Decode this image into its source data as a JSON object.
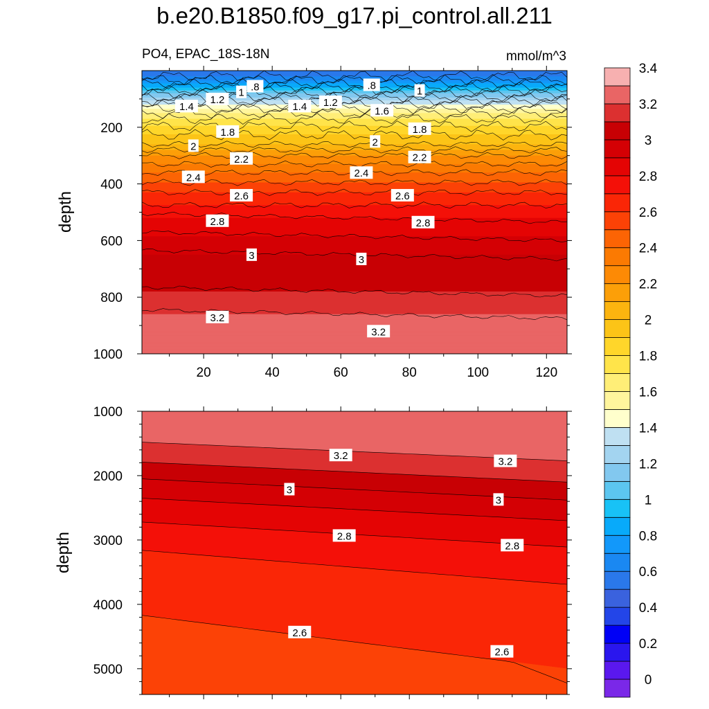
{
  "title": "b.e20.B1850.f09_g17.pi_control.all.211",
  "chart_data": [
    {
      "type": "contour",
      "panel": "upper",
      "left_label": "PO4, EPAC_18S-18N",
      "units": "mmol/m^3",
      "ylabel": "depth",
      "xlabel": "",
      "xlim": [
        2,
        126
      ],
      "ylim": [
        1000,
        0
      ],
      "x_ticks": [
        20,
        40,
        60,
        80,
        100,
        120
      ],
      "y_ticks": [
        200,
        400,
        600,
        800,
        1000
      ],
      "contour_profile": [
        {
          "depth": 5,
          "value": 0.5
        },
        {
          "depth": 40,
          "value": 0.75
        },
        {
          "depth": 100,
          "value": 1.25
        },
        {
          "depth": 140,
          "value": 1.55
        },
        {
          "depth": 170,
          "value": 1.7
        },
        {
          "depth": 210,
          "value": 1.85
        },
        {
          "depth": 260,
          "value": 2.0
        },
        {
          "depth": 300,
          "value": 2.2
        },
        {
          "depth": 360,
          "value": 2.4
        },
        {
          "depth": 430,
          "value": 2.6
        },
        {
          "depth": 520,
          "value": 2.8
        },
        {
          "depth": 650,
          "value": 3.0
        },
        {
          "depth": 780,
          "value": 3.1
        },
        {
          "depth": 860,
          "value": 3.2
        },
        {
          "depth": 1000,
          "value": 3.25
        }
      ],
      "contour_labels": [
        {
          "x": 15,
          "depth": 125,
          "text": "1.4"
        },
        {
          "x": 24,
          "depth": 100,
          "text": "1.2"
        },
        {
          "x": 31,
          "depth": 75,
          "text": "1"
        },
        {
          "x": 35,
          "depth": 55,
          "text": ".8"
        },
        {
          "x": 48,
          "depth": 125,
          "text": "1.4"
        },
        {
          "x": 57,
          "depth": 110,
          "text": "1.2"
        },
        {
          "x": 69,
          "depth": 50,
          "text": ".8"
        },
        {
          "x": 72,
          "depth": 140,
          "text": "1.6"
        },
        {
          "x": 83,
          "depth": 70,
          "text": "1"
        },
        {
          "x": 27,
          "depth": 215,
          "text": "1.8"
        },
        {
          "x": 83,
          "depth": 205,
          "text": "1.8"
        },
        {
          "x": 17,
          "depth": 265,
          "text": "2"
        },
        {
          "x": 70,
          "depth": 250,
          "text": "2"
        },
        {
          "x": 31,
          "depth": 310,
          "text": "2.2"
        },
        {
          "x": 83,
          "depth": 305,
          "text": "2.2"
        },
        {
          "x": 17,
          "depth": 375,
          "text": "2.4"
        },
        {
          "x": 66,
          "depth": 360,
          "text": "2.4"
        },
        {
          "x": 31,
          "depth": 440,
          "text": "2.6"
        },
        {
          "x": 78,
          "depth": 440,
          "text": "2.6"
        },
        {
          "x": 24,
          "depth": 530,
          "text": "2.8"
        },
        {
          "x": 84,
          "depth": 535,
          "text": "2.8"
        },
        {
          "x": 34,
          "depth": 650,
          "text": "3"
        },
        {
          "x": 66,
          "depth": 665,
          "text": "3"
        },
        {
          "x": 24,
          "depth": 870,
          "text": "3.2"
        },
        {
          "x": 71,
          "depth": 920,
          "text": "3.2"
        }
      ]
    },
    {
      "type": "contour",
      "panel": "lower",
      "ylabel": "depth",
      "xlabel": "",
      "xlim": [
        2,
        126
      ],
      "ylim": [
        5400,
        1000
      ],
      "x_ticks": [
        20,
        40,
        60,
        80,
        100,
        120
      ],
      "y_ticks": [
        1000,
        2000,
        3000,
        4000,
        5000
      ],
      "contour_levels": [
        3.2,
        3.1,
        3.0,
        2.9,
        2.8,
        2.7,
        2.6,
        2.5
      ],
      "contour_lines": [
        {
          "level": 3.2,
          "depth_left": 1480,
          "depth_right": 1770
        },
        {
          "level": 3.1,
          "depth_left": 1790,
          "depth_right": 2100
        },
        {
          "level": 3.0,
          "depth_left": 2050,
          "depth_right": 2380
        },
        {
          "level": 2.9,
          "depth_left": 2350,
          "depth_right": 2700
        },
        {
          "level": 2.8,
          "depth_left": 2720,
          "depth_right": 3110
        },
        {
          "level": 2.7,
          "depth_left": 3160,
          "depth_right": 3690
        },
        {
          "level": 2.6,
          "depth_left": 4170,
          "depth_right": 5000
        }
      ],
      "contour_labels": [
        {
          "x": 60,
          "depth": 1680,
          "text": "3.2"
        },
        {
          "x": 108,
          "depth": 1770,
          "text": "3.2"
        },
        {
          "x": 45,
          "depth": 2210,
          "text": "3"
        },
        {
          "x": 106,
          "depth": 2370,
          "text": "3"
        },
        {
          "x": 61,
          "depth": 2930,
          "text": "2.8"
        },
        {
          "x": 110,
          "depth": 3080,
          "text": "2.8"
        },
        {
          "x": 48,
          "depth": 4430,
          "text": "2.6"
        },
        {
          "x": 107,
          "depth": 4730,
          "text": "2.6"
        }
      ]
    }
  ],
  "colorbar": {
    "labels": [
      "0",
      "0.2",
      "0.4",
      "0.6",
      "0.8",
      "1",
      "1.2",
      "1.4",
      "1.6",
      "1.8",
      "2",
      "2.2",
      "2.4",
      "2.6",
      "2.8",
      "3",
      "3.2",
      "3.4"
    ],
    "colors": [
      "#7a28e8",
      "#5a18ee",
      "#2a16ee",
      "#0000f6",
      "#2345e8",
      "#3a62de",
      "#2a78ea",
      "#1a88f2",
      "#1298fa",
      "#08aafa",
      "#18c2f6",
      "#5cc6f0",
      "#82c8ef",
      "#a3d4f0",
      "#bfe0f2",
      "#ffffcc",
      "#fff59d",
      "#ffee77",
      "#ffe44a",
      "#ffd62a",
      "#fcc417",
      "#fcb40f",
      "#fc9f08",
      "#fd8a05",
      "#fb7a02",
      "#fc6404",
      "#fc4206",
      "#fa2606",
      "#f41008",
      "#e40404",
      "#d40004",
      "#c80004",
      "#dc3030",
      "#e96565",
      "#f7b0b0"
    ]
  }
}
